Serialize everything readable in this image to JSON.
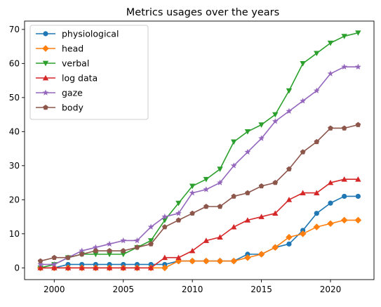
{
  "chart_data": {
    "type": "line",
    "title": "Metrics usages over the years",
    "xlabel": "",
    "ylabel": "",
    "x": [
      1999,
      2000,
      2001,
      2002,
      2003,
      2004,
      2005,
      2006,
      2007,
      2008,
      2009,
      2010,
      2011,
      2012,
      2013,
      2014,
      2015,
      2016,
      2017,
      2018,
      2019,
      2020,
      2021,
      2022
    ],
    "xlim": [
      1997.85,
      2023.15
    ],
    "ylim": [
      -3.45,
      72.45
    ],
    "xticks": [
      2000,
      2005,
      2010,
      2015,
      2020
    ],
    "yticks": [
      0,
      10,
      20,
      30,
      40,
      50,
      60,
      70
    ],
    "grid": false,
    "legend_position": "upper-left",
    "series": [
      {
        "name": "physiological",
        "color": "#1f77b4",
        "marker": "circle",
        "values": [
          0,
          0,
          1,
          1,
          1,
          1,
          1,
          1,
          1,
          1,
          2,
          2,
          2,
          2,
          2,
          4,
          4,
          6,
          7,
          11,
          16,
          19,
          21,
          21
        ]
      },
      {
        "name": "head",
        "color": "#ff7f0e",
        "marker": "diamond",
        "values": [
          0,
          0,
          0,
          0,
          0,
          0,
          0,
          0,
          0,
          0,
          2,
          2,
          2,
          2,
          2,
          3,
          4,
          6,
          9,
          10,
          12,
          13,
          14,
          14
        ]
      },
      {
        "name": "verbal",
        "color": "#2ca02c",
        "marker": "triangle-down",
        "values": [
          0,
          1,
          3,
          4,
          4,
          4,
          4,
          6,
          8,
          14,
          19,
          24,
          26,
          29,
          37,
          40,
          42,
          45,
          52,
          60,
          63,
          66,
          68,
          69
        ]
      },
      {
        "name": "log data",
        "color": "#d62728",
        "marker": "triangle-up",
        "values": [
          0,
          0,
          0,
          0,
          0,
          0,
          0,
          0,
          0,
          3,
          3,
          5,
          8,
          9,
          12,
          14,
          15,
          16,
          20,
          22,
          22,
          25,
          26,
          26
        ]
      },
      {
        "name": "gaze",
        "color": "#9467bd",
        "marker": "star",
        "values": [
          1,
          1,
          3,
          5,
          6,
          7,
          8,
          8,
          12,
          15,
          16,
          22,
          23,
          25,
          30,
          34,
          38,
          43,
          46,
          49,
          52,
          57,
          59,
          59
        ]
      },
      {
        "name": "body",
        "color": "#8c564b",
        "marker": "pentagon",
        "values": [
          2,
          3,
          3,
          4,
          5,
          5,
          5,
          6,
          7,
          12,
          14,
          16,
          18,
          18,
          21,
          22,
          24,
          25,
          29,
          34,
          37,
          41,
          41,
          42
        ]
      }
    ]
  }
}
